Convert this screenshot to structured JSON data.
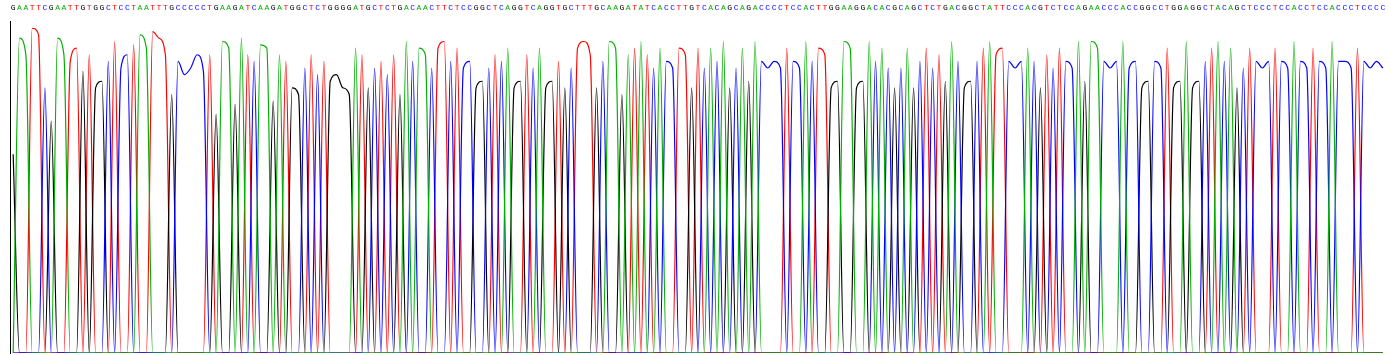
{
  "chart_data": {
    "type": "line",
    "categories": [
      "G",
      "A",
      "A",
      "T",
      "T",
      "C",
      "G",
      "A",
      "A",
      "T",
      "T",
      "G",
      "T",
      "G",
      "G",
      "C",
      "T",
      "C",
      "C",
      "T",
      "A",
      "A",
      "T",
      "T",
      "T",
      "G",
      "C",
      "C",
      "C",
      "C",
      "C",
      "T",
      "G",
      "A",
      "A",
      "G",
      "A",
      "T",
      "C",
      "A",
      "A",
      "G",
      "A",
      "T",
      "G",
      "G",
      "C",
      "T",
      "C",
      "T",
      "G",
      "G",
      "G",
      "G",
      "A",
      "T",
      "G",
      "C",
      "T",
      "C",
      "T",
      "G",
      "A",
      "C",
      "A",
      "A",
      "C",
      "T",
      "T",
      "C",
      "T",
      "C",
      "C",
      "G",
      "G",
      "C",
      "T",
      "C",
      "A",
      "G",
      "G",
      "T",
      "C",
      "A",
      "G",
      "G",
      "T",
      "G",
      "C",
      "T",
      "T",
      "T",
      "G",
      "C",
      "A",
      "A",
      "G",
      "A",
      "T",
      "A",
      "T",
      "C",
      "A",
      "C",
      "C",
      "T",
      "T",
      "G",
      "T",
      "C",
      "A",
      "C",
      "A",
      "G",
      "C",
      "A",
      "G",
      "A",
      "C",
      "C",
      "C",
      "C",
      "T",
      "C",
      "C",
      "A",
      "C",
      "T",
      "T",
      "G",
      "G",
      "A",
      "A",
      "G",
      "G",
      "A",
      "C",
      "A",
      "C",
      "G",
      "C",
      "A",
      "G",
      "C",
      "T",
      "C",
      "T",
      "G",
      "A",
      "C",
      "G",
      "G",
      "C",
      "T",
      "A",
      "T",
      "T",
      "C",
      "C",
      "C",
      "A",
      "C",
      "G",
      "T",
      "C",
      "T",
      "C",
      "C",
      "A",
      "G",
      "A",
      "A",
      "C",
      "C",
      "C",
      "A",
      "C",
      "C",
      "G",
      "G",
      "C",
      "C",
      "T",
      "G",
      "G",
      "A",
      "G",
      "G",
      "C",
      "T",
      "A",
      "C",
      "A",
      "G",
      "C",
      "T",
      "C",
      "C",
      "C",
      "T",
      "C",
      "C",
      "A",
      "C",
      "C",
      "T",
      "C",
      "C",
      "A",
      "C",
      "C",
      "C",
      "T",
      "C",
      "C",
      "C",
      "C"
    ],
    "series": [
      {
        "name": "A",
        "color": "#00b000",
        "values": [
          0,
          95,
          90,
          0,
          0,
          0,
          0,
          95,
          90,
          0,
          0,
          0,
          0,
          0,
          0,
          0,
          0,
          0,
          0,
          0,
          96,
          92,
          0,
          0,
          0,
          0,
          0,
          0,
          0,
          0,
          0,
          0,
          0,
          94,
          92,
          0,
          95,
          0,
          0,
          93,
          92,
          0,
          90,
          0,
          0,
          0,
          0,
          0,
          0,
          0,
          0,
          0,
          0,
          0,
          92,
          0,
          0,
          0,
          0,
          0,
          0,
          0,
          94,
          0,
          92,
          90,
          0,
          0,
          0,
          0,
          0,
          0,
          0,
          0,
          0,
          0,
          0,
          0,
          92,
          0,
          0,
          0,
          0,
          92,
          0,
          0,
          0,
          0,
          0,
          0,
          0,
          0,
          0,
          0,
          94,
          92,
          0,
          90,
          0,
          94,
          0,
          0,
          92,
          0,
          0,
          0,
          0,
          0,
          0,
          0,
          92,
          0,
          94,
          0,
          0,
          92,
          0,
          94,
          0,
          0,
          0,
          0,
          0,
          0,
          0,
          94,
          0,
          0,
          0,
          0,
          0,
          94,
          92,
          0,
          0,
          94,
          0,
          92,
          0,
          0,
          0,
          92,
          0,
          0,
          0,
          0,
          0,
          0,
          94,
          0,
          0,
          0,
          0,
          0,
          94,
          0,
          0,
          0,
          0,
          0,
          92,
          0,
          0,
          0,
          0,
          0,
          0,
          0,
          94,
          0,
          94,
          92,
          0,
          0,
          0,
          94,
          0,
          0,
          0,
          0,
          0,
          0,
          0,
          0,
          0,
          94,
          0,
          0,
          0,
          0,
          94,
          0,
          92,
          0,
          0,
          0,
          0,
          0,
          0,
          0,
          0,
          0,
          94,
          0,
          0,
          0,
          0,
          0,
          94,
          0,
          0,
          0,
          0,
          0,
          0,
          0,
          0
        ]
      },
      {
        "name": "C",
        "color": "#0000ff",
        "values": [
          0,
          0,
          0,
          0,
          0,
          80,
          0,
          0,
          0,
          0,
          0,
          0,
          0,
          0,
          0,
          88,
          0,
          86,
          90,
          0,
          0,
          0,
          0,
          0,
          0,
          0,
          88,
          84,
          86,
          90,
          85,
          0,
          0,
          0,
          0,
          0,
          0,
          0,
          88,
          0,
          0,
          0,
          0,
          0,
          0,
          0,
          86,
          0,
          84,
          0,
          0,
          0,
          0,
          0,
          0,
          0,
          0,
          86,
          0,
          84,
          0,
          0,
          0,
          88,
          0,
          0,
          86,
          0,
          0,
          88,
          0,
          86,
          88,
          0,
          0,
          86,
          0,
          88,
          0,
          0,
          0,
          0,
          86,
          0,
          0,
          0,
          0,
          0,
          86,
          0,
          0,
          0,
          0,
          88,
          0,
          0,
          0,
          0,
          0,
          0,
          0,
          86,
          0,
          88,
          86,
          0,
          0,
          0,
          0,
          86,
          0,
          88,
          0,
          0,
          86,
          0,
          0,
          0,
          88,
          86,
          88,
          86,
          0,
          88,
          86,
          0,
          88,
          0,
          0,
          0,
          0,
          0,
          0,
          0,
          0,
          0,
          88,
          0,
          86,
          0,
          86,
          0,
          0,
          88,
          0,
          86,
          0,
          0,
          0,
          88,
          0,
          0,
          88,
          0,
          0,
          0,
          0,
          88,
          86,
          88,
          0,
          88,
          0,
          0,
          86,
          0,
          88,
          86,
          0,
          0,
          0,
          0,
          88,
          86,
          88,
          0,
          86,
          88,
          0,
          0,
          88,
          86,
          0,
          0,
          0,
          0,
          0,
          0,
          88,
          0,
          0,
          88,
          0,
          0,
          86,
          0,
          88,
          86,
          88,
          0,
          88,
          86,
          0,
          88,
          86,
          0,
          88,
          86,
          0,
          88,
          88,
          86,
          0,
          88,
          86,
          88,
          86
        ]
      },
      {
        "name": "G",
        "color": "#000000",
        "values": [
          60,
          0,
          0,
          0,
          0,
          0,
          70,
          0,
          0,
          0,
          0,
          85,
          0,
          80,
          82,
          0,
          0,
          0,
          0,
          0,
          0,
          0,
          0,
          0,
          0,
          78,
          0,
          0,
          0,
          0,
          0,
          0,
          72,
          0,
          0,
          75,
          0,
          0,
          0,
          0,
          0,
          76,
          0,
          0,
          80,
          78,
          0,
          0,
          0,
          0,
          82,
          84,
          80,
          78,
          0,
          0,
          80,
          0,
          0,
          0,
          0,
          78,
          0,
          0,
          0,
          0,
          0,
          0,
          0,
          0,
          0,
          0,
          0,
          80,
          82,
          0,
          0,
          0,
          0,
          80,
          82,
          0,
          0,
          0,
          80,
          82,
          0,
          80,
          0,
          0,
          0,
          0,
          80,
          0,
          0,
          0,
          78,
          0,
          0,
          0,
          0,
          0,
          0,
          0,
          0,
          0,
          0,
          80,
          0,
          0,
          0,
          0,
          0,
          80,
          0,
          0,
          82,
          0,
          0,
          0,
          0,
          0,
          0,
          0,
          0,
          0,
          0,
          0,
          0,
          80,
          82,
          0,
          0,
          80,
          82,
          0,
          0,
          0,
          0,
          80,
          0,
          0,
          80,
          0,
          0,
          0,
          0,
          82,
          0,
          0,
          80,
          82,
          0,
          0,
          0,
          0,
          0,
          0,
          0,
          0,
          0,
          0,
          80,
          0,
          0,
          0,
          0,
          0,
          0,
          82,
          0,
          0,
          0,
          0,
          0,
          0,
          0,
          0,
          80,
          82,
          0,
          0,
          0,
          80,
          82,
          0,
          80,
          82,
          0,
          0,
          0,
          0,
          0,
          80,
          0,
          0,
          0,
          0,
          0,
          0,
          0,
          0,
          0,
          0,
          0,
          0,
          0,
          0,
          0,
          0,
          0,
          0,
          0,
          0,
          0,
          0,
          0
        ]
      },
      {
        "name": "T",
        "color": "#ff0000",
        "values": [
          0,
          0,
          0,
          98,
          96,
          0,
          0,
          0,
          0,
          88,
          92,
          0,
          90,
          0,
          0,
          0,
          94,
          0,
          0,
          93,
          0,
          0,
          97,
          95,
          90,
          0,
          0,
          0,
          0,
          0,
          0,
          90,
          0,
          0,
          0,
          0,
          0,
          90,
          0,
          0,
          0,
          0,
          0,
          88,
          0,
          0,
          0,
          90,
          0,
          88,
          0,
          0,
          0,
          0,
          0,
          90,
          0,
          0,
          88,
          0,
          90,
          0,
          0,
          0,
          0,
          0,
          0,
          92,
          94,
          0,
          92,
          0,
          0,
          0,
          0,
          0,
          90,
          0,
          0,
          0,
          0,
          90,
          0,
          0,
          0,
          0,
          88,
          0,
          0,
          92,
          94,
          90,
          0,
          0,
          0,
          0,
          0,
          0,
          92,
          0,
          90,
          0,
          0,
          0,
          0,
          92,
          90,
          0,
          92,
          0,
          0,
          0,
          0,
          0,
          0,
          0,
          0,
          0,
          0,
          0,
          0,
          0,
          92,
          0,
          0,
          0,
          0,
          92,
          90,
          0,
          0,
          0,
          0,
          0,
          0,
          0,
          0,
          0,
          0,
          0,
          0,
          0,
          0,
          0,
          92,
          0,
          90,
          0,
          0,
          0,
          0,
          0,
          0,
          92,
          0,
          90,
          92,
          0,
          0,
          0,
          0,
          0,
          0,
          90,
          0,
          92,
          0,
          0,
          0,
          0,
          0,
          0,
          0,
          0,
          0,
          0,
          0,
          0,
          0,
          0,
          0,
          0,
          92,
          0,
          0,
          0,
          0,
          0,
          0,
          92,
          0,
          0,
          0,
          0,
          0,
          92,
          0,
          0,
          0,
          92,
          0,
          0,
          0,
          0,
          0,
          92,
          0,
          0,
          0,
          0,
          0,
          0,
          92,
          0,
          0,
          0,
          0
        ]
      }
    ],
    "ylim": [
      0,
      100
    ],
    "grid": false,
    "tick_labels": "x"
  }
}
